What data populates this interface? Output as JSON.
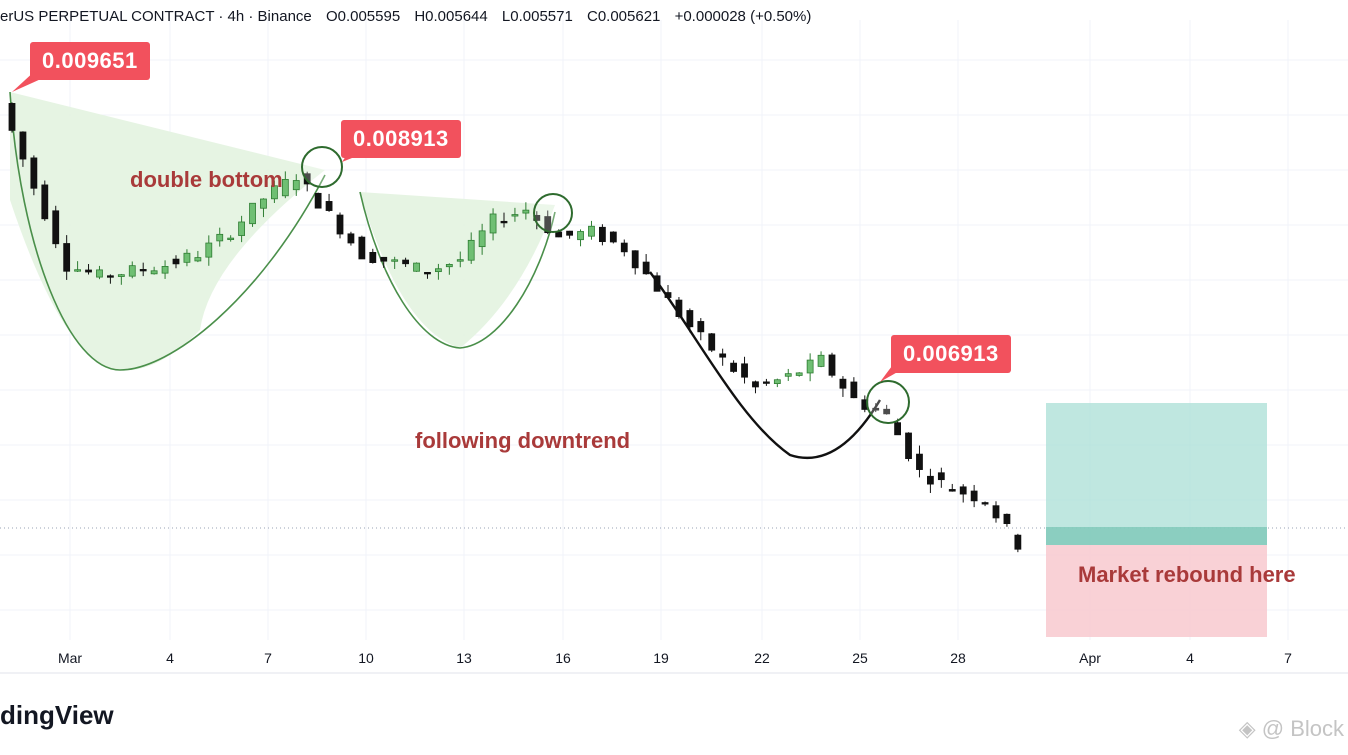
{
  "header": {
    "symbol": "erUS PERPETUAL CONTRACT · 4h · Binance",
    "open": "O0.005595",
    "high": "H0.005644",
    "low": "L0.005571",
    "close": "C0.005621",
    "change": "+0.000028 (+0.50%)"
  },
  "brand": "dingView",
  "watermark": "◈ @ Block",
  "chart_data": {
    "type": "candlestick",
    "x_ticks": [
      "Mar",
      "4",
      "7",
      "10",
      "13",
      "16",
      "19",
      "22",
      "25",
      "28",
      "Apr",
      "4",
      "7"
    ],
    "callouts": [
      {
        "label": "0.009651"
      },
      {
        "label": "0.008913"
      },
      {
        "label": "0.006913"
      }
    ],
    "annotations": [
      {
        "text": "double bottom"
      },
      {
        "text": "following downtrend"
      },
      {
        "text": "Market rebound here"
      }
    ],
    "colors": {
      "up": "#2e7d32",
      "down": "#111111",
      "pattern_fill": "#e3f3e0",
      "pattern_line": "#4a8f4a",
      "callout": "#f2515d",
      "annotation": "#a93a3a",
      "profit_zone": "#a9dfd5",
      "loss_zone": "#f8c9cf"
    },
    "price_path": [
      {
        "date": "Feb 28",
        "price": 0.00955
      },
      {
        "date": "Mar 1",
        "price": 0.0088
      },
      {
        "date": "Mar 2",
        "price": 0.0081
      },
      {
        "date": "Mar 3",
        "price": 0.008
      },
      {
        "date": "Mar 4",
        "price": 0.00805
      },
      {
        "date": "Mar 5",
        "price": 0.0081
      },
      {
        "date": "Mar 6",
        "price": 0.0082
      },
      {
        "date": "Mar 7",
        "price": 0.0084
      },
      {
        "date": "Mar 8",
        "price": 0.0087
      },
      {
        "date": "Mar 9",
        "price": 0.0089
      },
      {
        "date": "Mar 10",
        "price": 0.00855
      },
      {
        "date": "Mar 11",
        "price": 0.0082
      },
      {
        "date": "Mar 12",
        "price": 0.00812
      },
      {
        "date": "Mar 13",
        "price": 0.00805
      },
      {
        "date": "Mar 14",
        "price": 0.00815
      },
      {
        "date": "Mar 15",
        "price": 0.0085
      },
      {
        "date": "Mar 16",
        "price": 0.0086
      },
      {
        "date": "Mar 17",
        "price": 0.00835
      },
      {
        "date": "Mar 18",
        "price": 0.0084
      },
      {
        "date": "Mar 19",
        "price": 0.00825
      },
      {
        "date": "Mar 20",
        "price": 0.0079
      },
      {
        "date": "Mar 21",
        "price": 0.00755
      },
      {
        "date": "Mar 22",
        "price": 0.00725
      },
      {
        "date": "Mar 23",
        "price": 0.007
      },
      {
        "date": "Mar 24",
        "price": 0.0071
      },
      {
        "date": "Mar 25",
        "price": 0.00725
      },
      {
        "date": "Mar 26",
        "price": 0.0069
      },
      {
        "date": "Mar 27",
        "price": 0.00675
      },
      {
        "date": "Mar 28",
        "price": 0.00625
      },
      {
        "date": "Mar 29",
        "price": 0.0061
      },
      {
        "date": "Mar 30",
        "price": 0.006
      },
      {
        "date": "Mar 31",
        "price": 0.0056
      }
    ],
    "zones": {
      "profit": [
        0.00562,
        0.0065
      ],
      "loss": [
        0.0051,
        0.00562
      ]
    }
  }
}
